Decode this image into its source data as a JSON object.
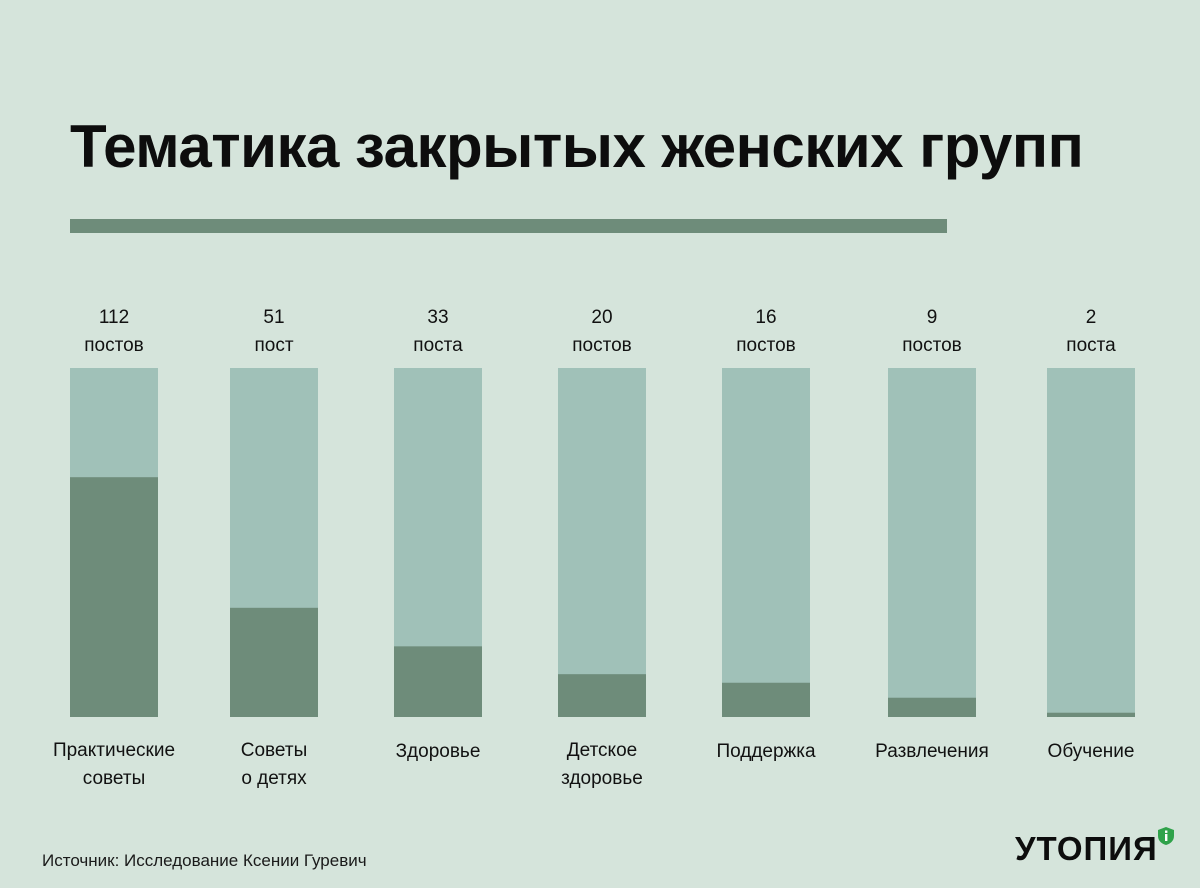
{
  "title": "Тематика закрытых женских групп",
  "source": "Источник: Исследование Ксении Гуревич",
  "logo": {
    "text": "УТОПИЯ",
    "badge_icon": "shield-icon"
  },
  "colors": {
    "background": "#d5e4db",
    "bar_track": "#a0c1b8",
    "bar_value": "#6e8c7a",
    "text": "#111111"
  },
  "chart_data": {
    "type": "bar",
    "title": "Тематика закрытых женских групп",
    "categories": [
      [
        "Практические",
        "советы"
      ],
      [
        "Советы",
        "о детях"
      ],
      [
        "Здоровье"
      ],
      [
        "Детское",
        "здоровье"
      ],
      [
        "Поддержка"
      ],
      [
        "Развлечения"
      ],
      [
        "Обучение"
      ]
    ],
    "values": [
      112,
      51,
      33,
      20,
      16,
      9,
      2
    ],
    "value_labels": [
      [
        "112",
        "постов"
      ],
      [
        "51",
        "пост"
      ],
      [
        "33",
        "поста"
      ],
      [
        "20",
        "постов"
      ],
      [
        "16",
        "постов"
      ],
      [
        "9",
        "постов"
      ],
      [
        "2",
        "поста"
      ]
    ],
    "ylim": [
      0,
      163
    ],
    "grid": false,
    "legend": "none"
  }
}
